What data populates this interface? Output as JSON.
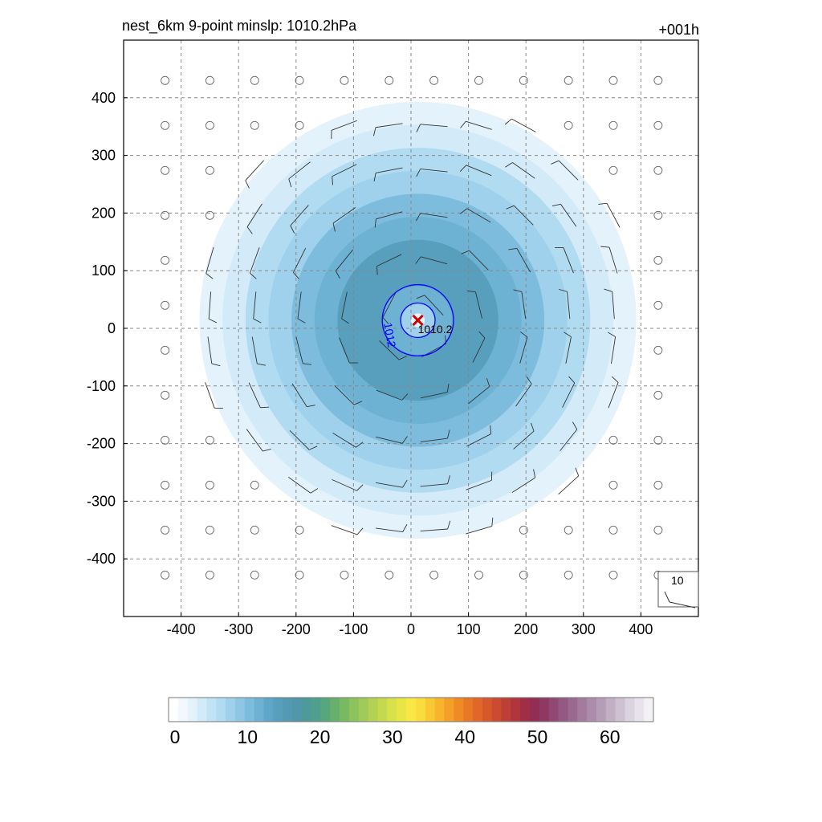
{
  "chart_data": {
    "type": "contour",
    "title": "nest_6km  9-point minslp: 1010.2hPa",
    "forecast_hour": "+001h",
    "xlim": [
      -500,
      500
    ],
    "ylim": [
      -500,
      500
    ],
    "xticks": [
      -400,
      -300,
      -200,
      -100,
      0,
      100,
      200,
      300,
      400
    ],
    "yticks": [
      -400,
      -300,
      -200,
      -100,
      0,
      100,
      200,
      300,
      400
    ],
    "grid": true,
    "center_marker": {
      "x": 12,
      "y": 14,
      "label": "1010.2"
    },
    "pressure_contours": [
      {
        "level": "1012",
        "radius": 62
      },
      {
        "level": "",
        "radius": 30
      }
    ],
    "wind_shading": {
      "max_radius": 380,
      "rings": [
        {
          "radius": 380,
          "value": 2
        },
        {
          "radius": 340,
          "value": 4
        },
        {
          "radius": 300,
          "value": 6
        },
        {
          "radius": 260,
          "value": 8
        },
        {
          "radius": 220,
          "value": 10
        },
        {
          "radius": 180,
          "value": 12
        },
        {
          "radius": 140,
          "value": 14
        },
        {
          "radius": 100,
          "value": 15
        },
        {
          "radius": 60,
          "value": 12
        },
        {
          "radius": 30,
          "value": 8
        },
        {
          "radius": 12,
          "value": 3
        }
      ]
    },
    "barb_reference": "10",
    "colorbar": {
      "min": 0,
      "max": 66,
      "ticks": [
        0,
        10,
        20,
        30,
        40,
        50,
        60
      ],
      "colors": [
        "#ffffff",
        "#f2f8fd",
        "#e4f2fb",
        "#d3ebf8",
        "#c2e3f4",
        "#b0dbf1",
        "#9fd1ec",
        "#8ec6e4",
        "#7dbcdc",
        "#6db1d3",
        "#5fa7c9",
        "#589fbe",
        "#5499b4",
        "#5196a9",
        "#4e9a9b",
        "#4ea08c",
        "#56a87c",
        "#66b06c",
        "#78ba62",
        "#8cc35d",
        "#a0cb58",
        "#b3d253",
        "#c5d94e",
        "#d8e04a",
        "#eae546",
        "#f7e845",
        "#fadc3e",
        "#f9c935",
        "#f7b42c",
        "#f49f27",
        "#ef8b25",
        "#e87826",
        "#e06728",
        "#d6582b",
        "#cb4a30",
        "#be3f36",
        "#b0353d",
        "#a02e47",
        "#922d53",
        "#8d3962",
        "#904872",
        "#945882",
        "#9a6990",
        "#a27b9d",
        "#ab8caa",
        "#b59db7",
        "#c1afc4",
        "#cdc1d2",
        "#dad3e0",
        "#e7e2ec",
        "#f3f0f6"
      ]
    }
  }
}
